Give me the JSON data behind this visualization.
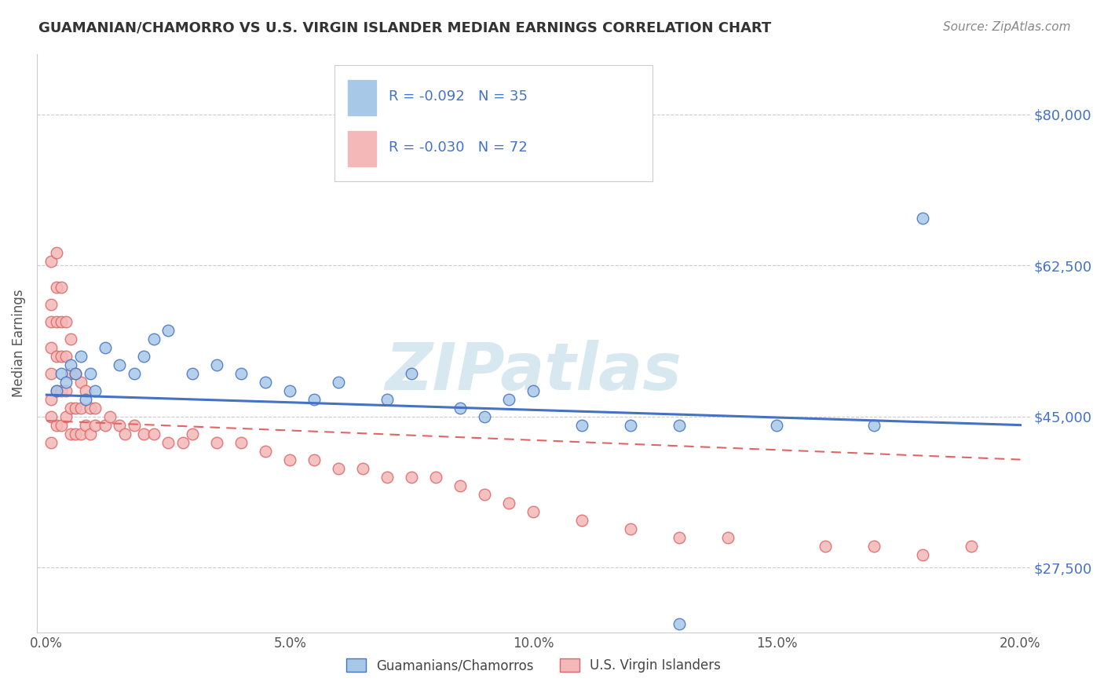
{
  "title": "GUAMANIAN/CHAMORRO VS U.S. VIRGIN ISLANDER MEDIAN EARNINGS CORRELATION CHART",
  "source": "Source: ZipAtlas.com",
  "ylabel": "Median Earnings",
  "xlim": [
    -0.002,
    0.202
  ],
  "ylim": [
    20000,
    87000
  ],
  "yticks": [
    27500,
    45000,
    62500,
    80000
  ],
  "ytick_labels": [
    "$27,500",
    "$45,000",
    "$62,500",
    "$80,000"
  ],
  "xticks": [
    0.0,
    0.05,
    0.1,
    0.15,
    0.2
  ],
  "xtick_labels": [
    "0.0%",
    "5.0%",
    "10.0%",
    "15.0%",
    "20.0%"
  ],
  "blue_color": "#a8c8e8",
  "pink_color": "#f4b8b8",
  "blue_edge_color": "#4472c4",
  "pink_edge_color": "#e06666",
  "blue_line_color": "#4472c4",
  "pink_line_color": "#e06666",
  "legend_label_blue": "Guamanians/Chamorros",
  "legend_label_pink": "U.S. Virgin Islanders",
  "watermark": "ZIPatlas",
  "watermark_color": "#d8e8f0",
  "blue_x": [
    0.002,
    0.003,
    0.004,
    0.005,
    0.006,
    0.007,
    0.008,
    0.009,
    0.01,
    0.012,
    0.015,
    0.018,
    0.02,
    0.022,
    0.025,
    0.03,
    0.035,
    0.04,
    0.045,
    0.05,
    0.055,
    0.06,
    0.07,
    0.075,
    0.085,
    0.09,
    0.095,
    0.1,
    0.11,
    0.12,
    0.13,
    0.15,
    0.17,
    0.18,
    0.13
  ],
  "blue_y": [
    48000,
    50000,
    49000,
    51000,
    50000,
    52000,
    47000,
    50000,
    48000,
    53000,
    51000,
    50000,
    52000,
    54000,
    55000,
    50000,
    51000,
    50000,
    49000,
    48000,
    47000,
    49000,
    47000,
    50000,
    46000,
    45000,
    47000,
    48000,
    44000,
    44000,
    44000,
    44000,
    44000,
    68000,
    21000
  ],
  "pink_x": [
    0.001,
    0.001,
    0.001,
    0.001,
    0.001,
    0.001,
    0.001,
    0.001,
    0.002,
    0.002,
    0.002,
    0.002,
    0.002,
    0.002,
    0.003,
    0.003,
    0.003,
    0.003,
    0.003,
    0.004,
    0.004,
    0.004,
    0.004,
    0.005,
    0.005,
    0.005,
    0.005,
    0.006,
    0.006,
    0.006,
    0.007,
    0.007,
    0.007,
    0.008,
    0.008,
    0.009,
    0.009,
    0.01,
    0.01,
    0.012,
    0.013,
    0.015,
    0.016,
    0.018,
    0.02,
    0.022,
    0.025,
    0.028,
    0.03,
    0.035,
    0.04,
    0.045,
    0.05,
    0.055,
    0.06,
    0.065,
    0.07,
    0.075,
    0.08,
    0.085,
    0.09,
    0.095,
    0.1,
    0.11,
    0.12,
    0.13,
    0.14,
    0.16,
    0.17,
    0.18,
    0.19
  ],
  "pink_y": [
    63000,
    58000,
    56000,
    53000,
    50000,
    47000,
    45000,
    42000,
    64000,
    60000,
    56000,
    52000,
    48000,
    44000,
    60000,
    56000,
    52000,
    48000,
    44000,
    56000,
    52000,
    48000,
    45000,
    54000,
    50000,
    46000,
    43000,
    50000,
    46000,
    43000,
    49000,
    46000,
    43000,
    48000,
    44000,
    46000,
    43000,
    46000,
    44000,
    44000,
    45000,
    44000,
    43000,
    44000,
    43000,
    43000,
    42000,
    42000,
    43000,
    42000,
    42000,
    41000,
    40000,
    40000,
    39000,
    39000,
    38000,
    38000,
    38000,
    37000,
    36000,
    35000,
    34000,
    33000,
    32000,
    31000,
    31000,
    30000,
    30000,
    29000,
    30000
  ]
}
